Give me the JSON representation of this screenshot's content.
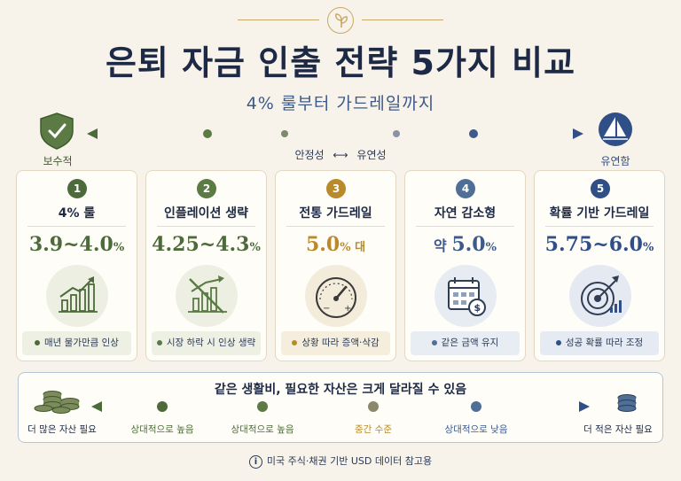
{
  "header": {
    "title": "은퇴 자금 인출 전략 5가지 비교",
    "subtitle": "4% 룰부터 가드레일까지"
  },
  "spectrum": {
    "left_label": "보수적",
    "right_label": "유연함",
    "center_left": "안정성",
    "center_arrow": "⟷",
    "center_right": "유연성"
  },
  "strategies": [
    {
      "num": "1",
      "name": "4% 룰",
      "rate_main": "3.9~4.0",
      "rate_suffix": "%",
      "note": "매년 물가만큼 인상",
      "color": "#4d6b3a",
      "icon": "bar-growth-icon"
    },
    {
      "num": "2",
      "name": "인플레이션 생략",
      "rate_main": "4.25~4.3",
      "rate_suffix": "%",
      "note": "시장 하락 시 인상 생략",
      "color": "#5b7a44",
      "icon": "crossed-chart-icon"
    },
    {
      "num": "3",
      "name": "전통 가드레일",
      "rate_main": "5.0",
      "rate_suffix": "% 대",
      "note": "상황 따라 증액·삭감",
      "color": "#b88a2a",
      "icon": "gauge-icon"
    },
    {
      "num": "4",
      "name": "자연 감소형",
      "rate_prefix": "약 ",
      "rate_main": "5.0",
      "rate_suffix": "%",
      "note": "같은 금액 유지",
      "color": "#4f6f97",
      "icon": "calendar-dollar-icon"
    },
    {
      "num": "5",
      "name": "확률 기반 가드레일",
      "rate_main": "5.75~6.0",
      "rate_suffix": "%",
      "note": "성공 확률 따라 조정",
      "color": "#2f4f86",
      "icon": "target-icon"
    }
  ],
  "bottom": {
    "title": "같은 생활비, 필요한 자산은 크게 달라질 수 있음",
    "left_label": "더 많은 자산 필요",
    "right_label": "더 적은 자산 필요",
    "levels": [
      "상대적으로 높음",
      "상대적으로 높음",
      "중간 수준",
      "상대적으로 낮음"
    ]
  },
  "footer": {
    "info_glyph": "i",
    "text": "미국 주식·채권 기반 USD 데이터 참고용"
  }
}
